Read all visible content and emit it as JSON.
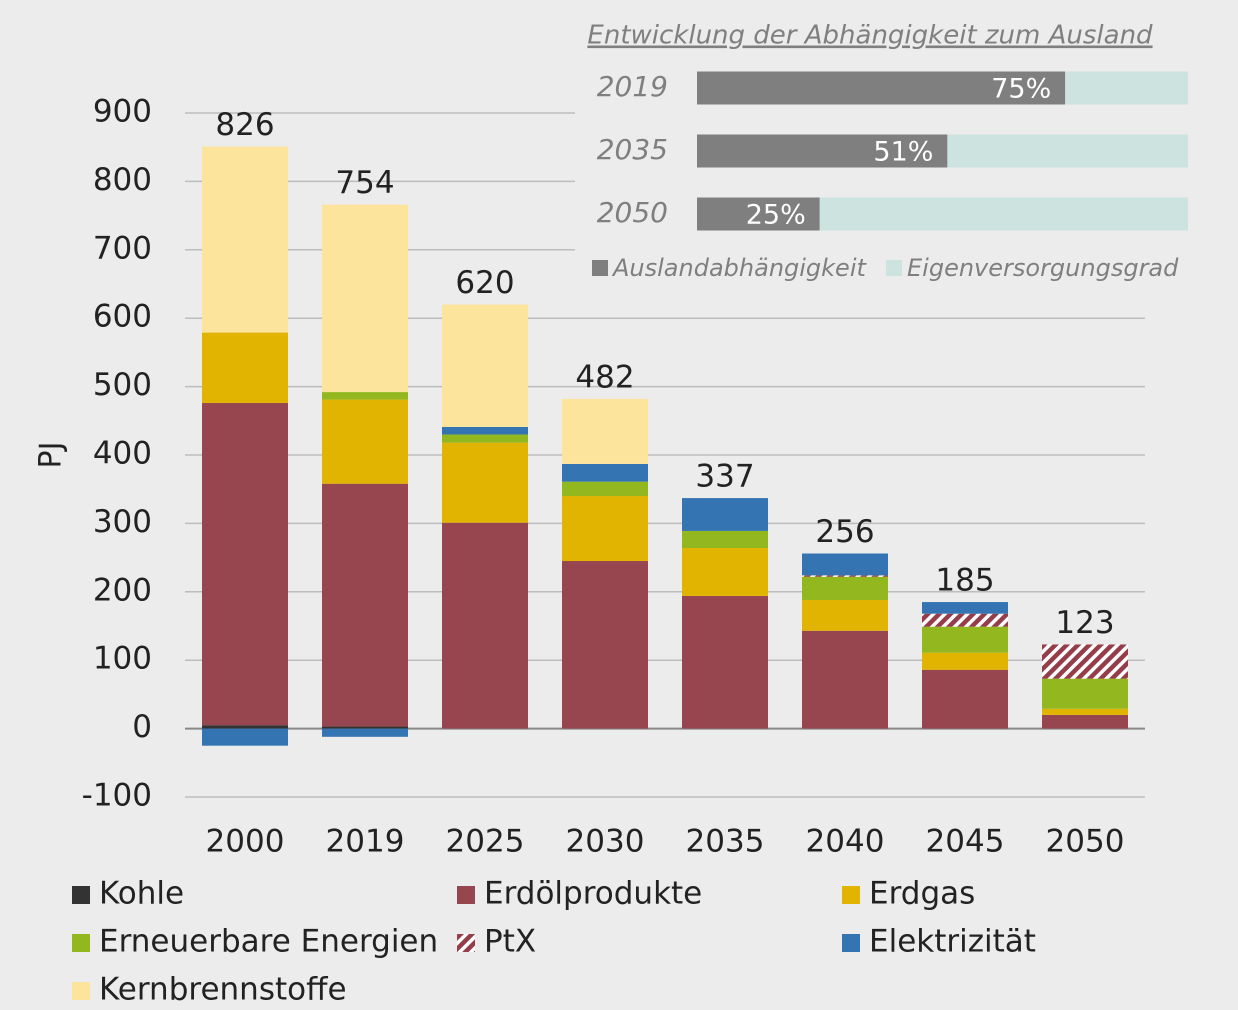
{
  "chart_data": [
    {
      "type": "stacked-bar",
      "y_label": "PJ",
      "categories": [
        "2000",
        "2019",
        "2025",
        "2030",
        "2035",
        "2040",
        "2045",
        "2050"
      ],
      "series": [
        {
          "name": "Kohle",
          "color": "#333333",
          "values": [
            5,
            3,
            0,
            0,
            0,
            0,
            0,
            0
          ]
        },
        {
          "name": "Erdölprodukte",
          "color": "#97464f",
          "values": [
            471,
            355,
            301,
            245,
            194,
            143,
            86,
            20
          ]
        },
        {
          "name": "Erdgas",
          "color": "#e0b400",
          "values": [
            103,
            123,
            117,
            95,
            70,
            45,
            25,
            9
          ]
        },
        {
          "name": "Erneuerbare Energien",
          "color": "#93b81f",
          "values": [
            0,
            11,
            12,
            21,
            25,
            34,
            38,
            44
          ]
        },
        {
          "name": "PtX",
          "color": "#953d48",
          "hatch": true,
          "values": [
            0,
            0,
            0,
            0,
            0,
            2,
            19,
            50
          ]
        },
        {
          "name": "Elektrizität",
          "color": "#3574b2",
          "values": [
            -25,
            -12,
            11,
            26,
            48,
            32,
            17,
            0
          ]
        },
        {
          "name": "Kernbrennstoffe",
          "color": "#fde49c",
          "values": [
            272,
            274,
            179,
            95,
            0,
            0,
            0,
            0
          ]
        }
      ],
      "totals": [
        826,
        754,
        620,
        482,
        337,
        256,
        185,
        123
      ],
      "ylim": [
        -100,
        900
      ],
      "yticks": [
        -100,
        0,
        100,
        200,
        300,
        400,
        500,
        600,
        700,
        800,
        900
      ],
      "grid": true
    },
    {
      "type": "stacked-hbar",
      "title": "Entwicklung der Abhängigkeit zum Ausland",
      "categories": [
        "2019",
        "2035",
        "2050"
      ],
      "series": [
        {
          "name": "Auslandabhängigkeit",
          "color": "#7f7f7f",
          "values": [
            75,
            51,
            25
          ],
          "value_labels": [
            "75%",
            "51%",
            "25%"
          ]
        },
        {
          "name": "Eigenversorgungsgrad",
          "color": "#cde3e0",
          "values": [
            25,
            49,
            75
          ]
        }
      ],
      "xlim": [
        0,
        100
      ]
    }
  ]
}
